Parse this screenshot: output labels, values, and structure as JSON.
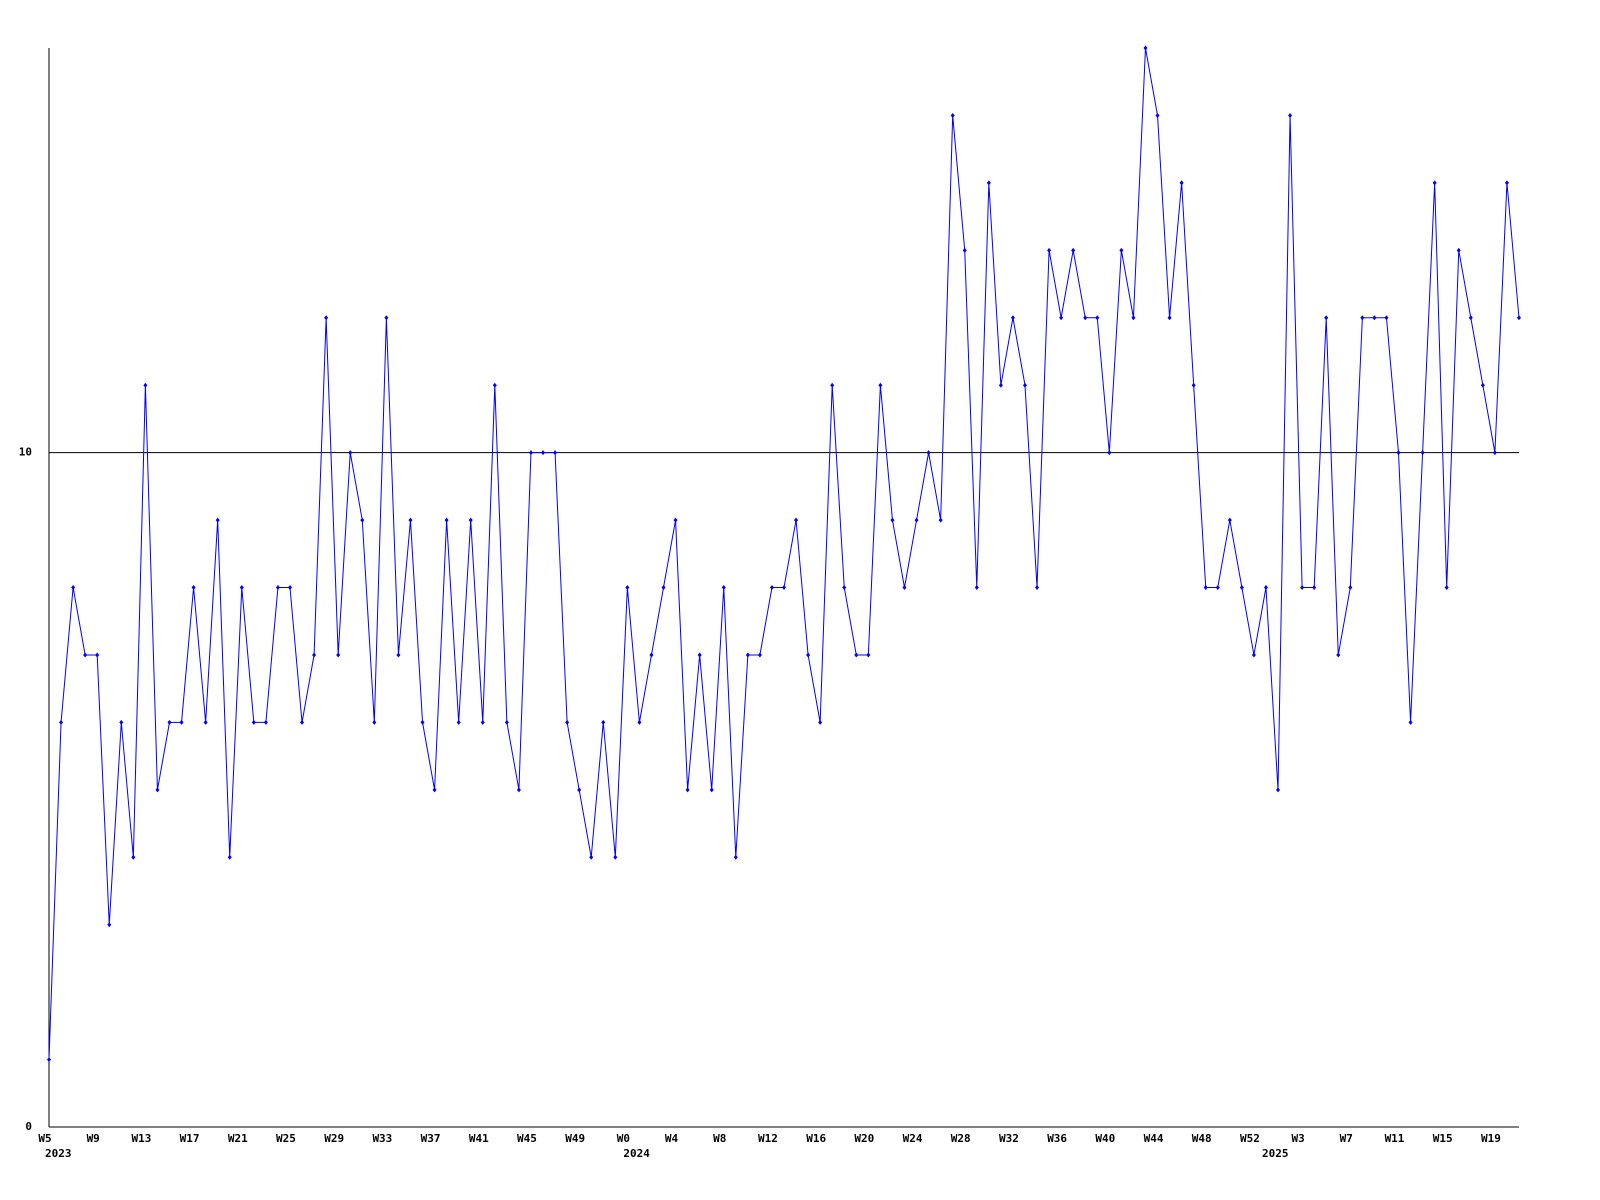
{
  "chart_data": {
    "type": "line",
    "categories": [
      "W5",
      null,
      null,
      null,
      "W9",
      null,
      null,
      null,
      "W13",
      null,
      null,
      null,
      "W17",
      null,
      null,
      null,
      "W21",
      null,
      null,
      null,
      "W25",
      null,
      null,
      null,
      "W29",
      null,
      null,
      null,
      "W33",
      null,
      null,
      null,
      "W37",
      null,
      null,
      null,
      "W41",
      null,
      null,
      null,
      "W45",
      null,
      null,
      null,
      "W49",
      null,
      null,
      null,
      "W0",
      null,
      null,
      null,
      "W4",
      null,
      null,
      null,
      "W8",
      null,
      null,
      null,
      "W12",
      null,
      null,
      null,
      "W16",
      null,
      null,
      null,
      "W20",
      null,
      null,
      null,
      "W24",
      null,
      null,
      null,
      "W28",
      null,
      null,
      null,
      "W32",
      null,
      null,
      null,
      "W36",
      null,
      null,
      null,
      "W40",
      null,
      null,
      null,
      "W44",
      null,
      null,
      null,
      "W48",
      null,
      null,
      null,
      "W52",
      null,
      null,
      null,
      "W3",
      null,
      null,
      null,
      "W7",
      null,
      null,
      null,
      "W11",
      null,
      null,
      null,
      "W15",
      null,
      null,
      null,
      "W19",
      null,
      null
    ],
    "year_categories": [
      "2023",
      null,
      null,
      null,
      null,
      null,
      null,
      null,
      null,
      null,
      null,
      null,
      null,
      null,
      null,
      null,
      null,
      null,
      null,
      null,
      null,
      null,
      null,
      null,
      null,
      null,
      null,
      null,
      null,
      null,
      null,
      null,
      null,
      null,
      null,
      null,
      null,
      null,
      null,
      null,
      null,
      null,
      null,
      null,
      null,
      null,
      null,
      null,
      "2024",
      null,
      null,
      null,
      null,
      null,
      null,
      null,
      null,
      null,
      null,
      null,
      null,
      null,
      null,
      null,
      null,
      null,
      null,
      null,
      null,
      null,
      null,
      null,
      null,
      null,
      null,
      null,
      null,
      null,
      null,
      null,
      null,
      null,
      null,
      null,
      null,
      null,
      null,
      null,
      null,
      null,
      null,
      null,
      null,
      null,
      null,
      null,
      null,
      null,
      null,
      null,
      null,
      "2025",
      null,
      null,
      null,
      null,
      null,
      null,
      null,
      null,
      null,
      null,
      null,
      null,
      null,
      null,
      null,
      null,
      null,
      null,
      null,
      null,
      null
    ],
    "series": [
      {
        "color": "#0000ff",
        "values": [
          1,
          6,
          8,
          7,
          7,
          3,
          6,
          4,
          11,
          5,
          6,
          6,
          8,
          6,
          9,
          4,
          8,
          6,
          6,
          8,
          8,
          6,
          7,
          12,
          7,
          10,
          9,
          6,
          12,
          7,
          9,
          6,
          5,
          9,
          6,
          9,
          6,
          11,
          6,
          5,
          10,
          10,
          10,
          6,
          5,
          4,
          6,
          4,
          8,
          6,
          7,
          8,
          9,
          5,
          7,
          5,
          8,
          4,
          7,
          7,
          8,
          8,
          9,
          7,
          6,
          11,
          8,
          7,
          7,
          11,
          9,
          8,
          9,
          10,
          9,
          15,
          13,
          8,
          14,
          11,
          12,
          11,
          8,
          13,
          12,
          13,
          12,
          12,
          10,
          13,
          12,
          16,
          15,
          12,
          14,
          11,
          8,
          8,
          9,
          8,
          7,
          8,
          5,
          15,
          8,
          8,
          12,
          7,
          8,
          12,
          12,
          12,
          10,
          6,
          10,
          14,
          8,
          13,
          12,
          11,
          10,
          14,
          12
        ]
      }
    ],
    "ylim": [
      0,
      16
    ],
    "yticks": [
      0,
      10
    ],
    "grid": true
  }
}
